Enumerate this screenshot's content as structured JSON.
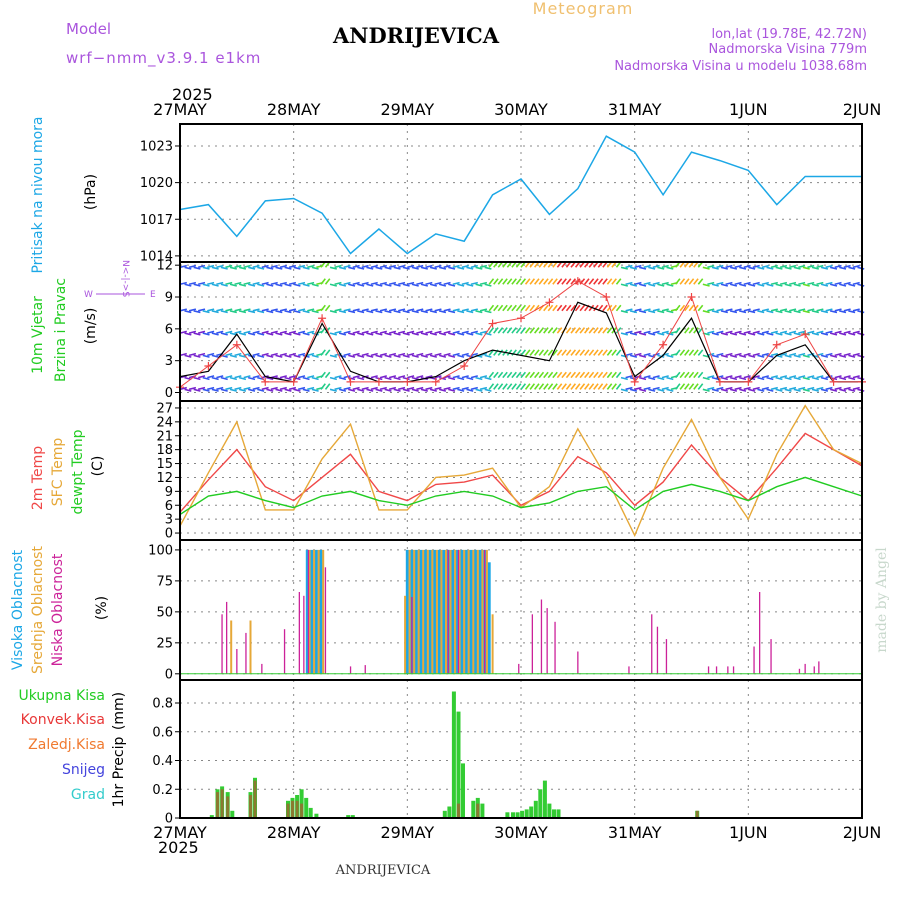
{
  "header": {
    "model_label": "Model",
    "model_name": "wrf−nmm_v3.9.1  e1km",
    "station": "ANDRIJEVICA",
    "product": "Meteogram",
    "coords": "lon,lat (19.78E, 42.72N)",
    "elevation": "Nadmorska Visina 779m",
    "model_elevation": "Nadmorska Visina u modelu 1038.68m"
  },
  "footer": {
    "station": "ANDRIJEVICA"
  },
  "watermark": "made by Angel",
  "time_axis": {
    "year": "2025",
    "ticks": [
      "27MAY",
      "28MAY",
      "29MAY",
      "30MAY",
      "31MAY",
      "1JUN",
      "2JUN"
    ]
  },
  "colors": {
    "pressure": "#1ca7e6",
    "temp2m": "#f04848",
    "sfc_temp": "#e6a838",
    "dewpt": "#22cc22",
    "cloud_high": "#1ca7e6",
    "cloud_mid": "#e6a838",
    "cloud_low": "#cc2299",
    "precip_total": "#33cc33",
    "precip_conv": "#e83838",
    "precip_frozen": "#f07a30",
    "snow": "#4444dd",
    "hail": "#33cccc",
    "header_text": "#aa55dd",
    "title_orange": "#f0c070"
  },
  "chart_data": [
    {
      "type": "line",
      "panel": "pressure",
      "ylabel_main": "Pritisak na nivou mora",
      "ylabel_unit": "(hPa)",
      "ylim": [
        1013.5,
        1024.8
      ],
      "yticks": [
        1014,
        1017,
        1020,
        1023
      ],
      "grid": true,
      "x_days": [
        0,
        0.25,
        0.5,
        0.75,
        1,
        1.25,
        1.5,
        1.75,
        2,
        2.25,
        2.5,
        2.75,
        3,
        3.25,
        3.5,
        3.75,
        4,
        4.25,
        4.5,
        4.75,
        5,
        5.25,
        5.5,
        5.75,
        6
      ],
      "series": [
        {
          "values": [
            1017.8,
            1018.2,
            1015.6,
            1018.5,
            1018.7,
            1017.5,
            1014.2,
            1016.2,
            1014.2,
            1015.8,
            1015.2,
            1019.0,
            1020.3,
            1017.4,
            1019.5,
            1023.8,
            1022.5,
            1019.0,
            1022.5,
            1021.8,
            1021.0,
            1018.2,
            1020.5,
            1020.5,
            1020.5
          ]
        }
      ]
    },
    {
      "type": "scatter",
      "panel": "wind",
      "ylabel_main": "10m Vjetar",
      "ylabel_sub": "Brzina i Pravac",
      "ylabel_unit": "(m/s)",
      "compass": "W <-|-> E, S <-|-> N",
      "ylim": [
        -0.8,
        12.3
      ],
      "yticks": [
        0,
        3,
        6,
        9,
        12
      ],
      "grid": true,
      "x_days": [
        0,
        0.25,
        0.5,
        0.75,
        1,
        1.25,
        1.5,
        1.75,
        2,
        2.25,
        2.5,
        2.75,
        3,
        3.25,
        3.5,
        3.75,
        4,
        4.25,
        4.5,
        4.75,
        5,
        5.25,
        5.5,
        5.75,
        6
      ],
      "series": [
        {
          "values": [
            1.5,
            2.0,
            5.5,
            1.5,
            1.0,
            6.5,
            2.0,
            1.0,
            1.0,
            1.5,
            3.0,
            4.0,
            3.5,
            3.0,
            8.5,
            7.5,
            1.5,
            3.5,
            7.0,
            1.0,
            1.0,
            3.5,
            4.5,
            1.0,
            1.0
          ]
        },
        {
          "values": [
            0.5,
            2.5,
            4.5,
            1.0,
            1.0,
            7.0,
            1.0,
            1.0,
            1.0,
            1.0,
            2.5,
            6.5,
            7.0,
            8.5,
            10.5,
            9.0,
            1.0,
            4.5,
            9.0,
            1.0,
            1.0,
            4.5,
            5.5,
            1.0,
            1.0
          ]
        }
      ]
    },
    {
      "type": "line",
      "panel": "temperature",
      "ylabel_1": "2m Temp",
      "ylabel_2": "SFC Temp",
      "ylabel_3": "dewpt Temp",
      "ylabel_unit": "(C)",
      "ylim": [
        -1.5,
        28.5
      ],
      "yticks": [
        0,
        3,
        6,
        9,
        12,
        15,
        18,
        21,
        24,
        27
      ],
      "grid": true,
      "x_days": [
        0,
        0.25,
        0.5,
        0.75,
        1,
        1.25,
        1.5,
        1.75,
        2,
        2.25,
        2.5,
        2.75,
        3,
        3.25,
        3.5,
        3.75,
        4,
        4.25,
        4.5,
        4.75,
        5,
        5.25,
        5.5,
        5.75,
        6
      ],
      "series": [
        {
          "name": "2m Temp",
          "values": [
            4.5,
            11.5,
            18.0,
            10.0,
            7.0,
            12.0,
            17.0,
            9.0,
            7.0,
            10.5,
            11.0,
            12.5,
            6.0,
            9.0,
            16.5,
            13.0,
            6.0,
            11.0,
            19.0,
            12.0,
            7.0,
            14.0,
            21.5,
            18.0,
            14.5
          ]
        },
        {
          "name": "SFC Temp",
          "values": [
            1.5,
            13.0,
            24.0,
            5.0,
            5.0,
            16.0,
            23.5,
            5.0,
            5.0,
            12.0,
            12.5,
            14.0,
            5.5,
            10.0,
            22.5,
            12.0,
            -0.5,
            14.0,
            24.5,
            12.0,
            3.0,
            17.0,
            27.5,
            18.0,
            15.0
          ]
        },
        {
          "name": "dewpt Temp",
          "values": [
            4.0,
            8.0,
            9.0,
            7.0,
            5.5,
            8.0,
            9.0,
            7.0,
            6.0,
            8.0,
            9.0,
            8.0,
            5.5,
            6.5,
            9.0,
            10.0,
            5.0,
            9.0,
            10.5,
            9.0,
            7.0,
            10.0,
            12.0,
            10.0,
            8.0
          ]
        }
      ]
    },
    {
      "type": "bar",
      "panel": "cloud",
      "ylabel_1": "Visoka Oblacnost",
      "ylabel_2": "Srednja Oblacnost",
      "ylabel_3": "Niska Oblacnost",
      "ylabel_unit": "(%)",
      "ylim": [
        -5,
        108
      ],
      "yticks": [
        0,
        25,
        50,
        75,
        100
      ],
      "grid": true,
      "series": [
        {
          "name": "Visoka Oblacnost",
          "bars": [
            [
              1.12,
              100
            ],
            [
              1.16,
              100
            ],
            [
              1.2,
              100
            ],
            [
              1.24,
              100
            ],
            [
              2.0,
              100
            ],
            [
              2.04,
              100
            ],
            [
              2.08,
              100
            ],
            [
              2.12,
              100
            ],
            [
              2.16,
              100
            ],
            [
              2.2,
              100
            ],
            [
              2.24,
              100
            ],
            [
              2.28,
              100
            ],
            [
              2.32,
              100
            ],
            [
              2.36,
              100
            ],
            [
              2.4,
              100
            ],
            [
              2.44,
              100
            ],
            [
              2.48,
              100
            ],
            [
              2.52,
              100
            ],
            [
              2.56,
              100
            ],
            [
              2.6,
              100
            ],
            [
              2.64,
              100
            ],
            [
              2.68,
              100
            ],
            [
              2.72,
              90
            ]
          ]
        },
        {
          "name": "Srednja Oblacnost",
          "bars": [
            [
              0.45,
              43
            ],
            [
              0.62,
              43
            ],
            [
              1.14,
              100
            ],
            [
              1.18,
              100
            ],
            [
              1.22,
              100
            ],
            [
              1.26,
              100
            ],
            [
              1.98,
              63
            ],
            [
              2.02,
              100
            ],
            [
              2.06,
              100
            ],
            [
              2.1,
              100
            ],
            [
              2.14,
              100
            ],
            [
              2.18,
              100
            ],
            [
              2.22,
              100
            ],
            [
              2.26,
              100
            ],
            [
              2.3,
              100
            ],
            [
              2.34,
              100
            ],
            [
              2.38,
              100
            ],
            [
              2.42,
              100
            ],
            [
              2.46,
              100
            ],
            [
              2.5,
              100
            ],
            [
              2.54,
              100
            ],
            [
              2.58,
              100
            ],
            [
              2.62,
              100
            ],
            [
              2.66,
              100
            ],
            [
              2.7,
              100
            ],
            [
              2.75,
              48
            ]
          ]
        },
        {
          "name": "Niska Oblacnost",
          "bars": [
            [
              0.37,
              48
            ],
            [
              0.41,
              58
            ],
            [
              0.5,
              20
            ],
            [
              0.58,
              33
            ],
            [
              0.72,
              8
            ],
            [
              0.92,
              36
            ],
            [
              1.05,
              66
            ],
            [
              1.09,
              63
            ],
            [
              1.13,
              100
            ],
            [
              1.28,
              86
            ],
            [
              1.5,
              6
            ],
            [
              1.63,
              7
            ],
            [
              2.04,
              62
            ],
            [
              2.36,
              100
            ],
            [
              2.45,
              100
            ],
            [
              2.68,
              100
            ],
            [
              2.98,
              8
            ],
            [
              3.1,
              48
            ],
            [
              3.18,
              60
            ],
            [
              3.23,
              53
            ],
            [
              3.3,
              42
            ],
            [
              3.5,
              18
            ],
            [
              3.95,
              6
            ],
            [
              4.15,
              48
            ],
            [
              4.2,
              38
            ],
            [
              4.28,
              28
            ],
            [
              4.65,
              6
            ],
            [
              4.72,
              6
            ],
            [
              4.82,
              6
            ],
            [
              4.87,
              6
            ],
            [
              5.05,
              22
            ],
            [
              5.1,
              66
            ],
            [
              5.2,
              28
            ],
            [
              5.45,
              4
            ],
            [
              5.5,
              8
            ],
            [
              5.58,
              6
            ],
            [
              5.62,
              10
            ]
          ]
        }
      ]
    },
    {
      "type": "bar",
      "panel": "precip",
      "ylabel_main": "1hr Precip",
      "ylabel_unit": "(mm)",
      "legend": [
        "Ukupna Kisa",
        "Konvek.Kisa",
        "Zaledj.Kisa",
        "Snijeg",
        "Grad"
      ],
      "ylim": [
        0,
        0.96
      ],
      "yticks": [
        0,
        0.2,
        0.4,
        0.6,
        0.8
      ],
      "grid": true,
      "series": [
        {
          "name": "Ukupna Kisa",
          "bars": [
            [
              0.28,
              0.02
            ],
            [
              0.33,
              0.2
            ],
            [
              0.37,
              0.22
            ],
            [
              0.42,
              0.18
            ],
            [
              0.46,
              0.05
            ],
            [
              0.62,
              0.18
            ],
            [
              0.66,
              0.28
            ],
            [
              0.95,
              0.12
            ],
            [
              0.99,
              0.14
            ],
            [
              1.03,
              0.16
            ],
            [
              1.07,
              0.2
            ],
            [
              1.11,
              0.14
            ],
            [
              1.15,
              0.07
            ],
            [
              1.2,
              0.03
            ],
            [
              1.48,
              0.02
            ],
            [
              1.52,
              0.02
            ],
            [
              2.33,
              0.05
            ],
            [
              2.37,
              0.08
            ],
            [
              2.41,
              0.88
            ],
            [
              2.45,
              0.74
            ],
            [
              2.49,
              0.38
            ],
            [
              2.58,
              0.12
            ],
            [
              2.62,
              0.14
            ],
            [
              2.66,
              0.1
            ],
            [
              2.88,
              0.04
            ],
            [
              2.93,
              0.04
            ],
            [
              2.97,
              0.04
            ],
            [
              3.01,
              0.05
            ],
            [
              3.05,
              0.06
            ],
            [
              3.09,
              0.08
            ],
            [
              3.13,
              0.12
            ],
            [
              3.17,
              0.2
            ],
            [
              3.21,
              0.26
            ],
            [
              3.25,
              0.1
            ],
            [
              3.29,
              0.06
            ],
            [
              3.33,
              0.06
            ],
            [
              4.55,
              0.05
            ]
          ]
        },
        {
          "name": "Konvek.Kisa",
          "bars": [
            [
              0.33,
              0.18
            ],
            [
              0.37,
              0.2
            ],
            [
              0.42,
              0.15
            ],
            [
              0.62,
              0.16
            ],
            [
              0.66,
              0.26
            ],
            [
              0.95,
              0.1
            ],
            [
              0.99,
              0.12
            ],
            [
              1.03,
              0.12
            ],
            [
              1.07,
              0.1
            ],
            [
              2.45,
              0.1
            ],
            [
              2.62,
              0.1
            ],
            [
              4.55,
              0.05
            ]
          ]
        }
      ]
    }
  ]
}
